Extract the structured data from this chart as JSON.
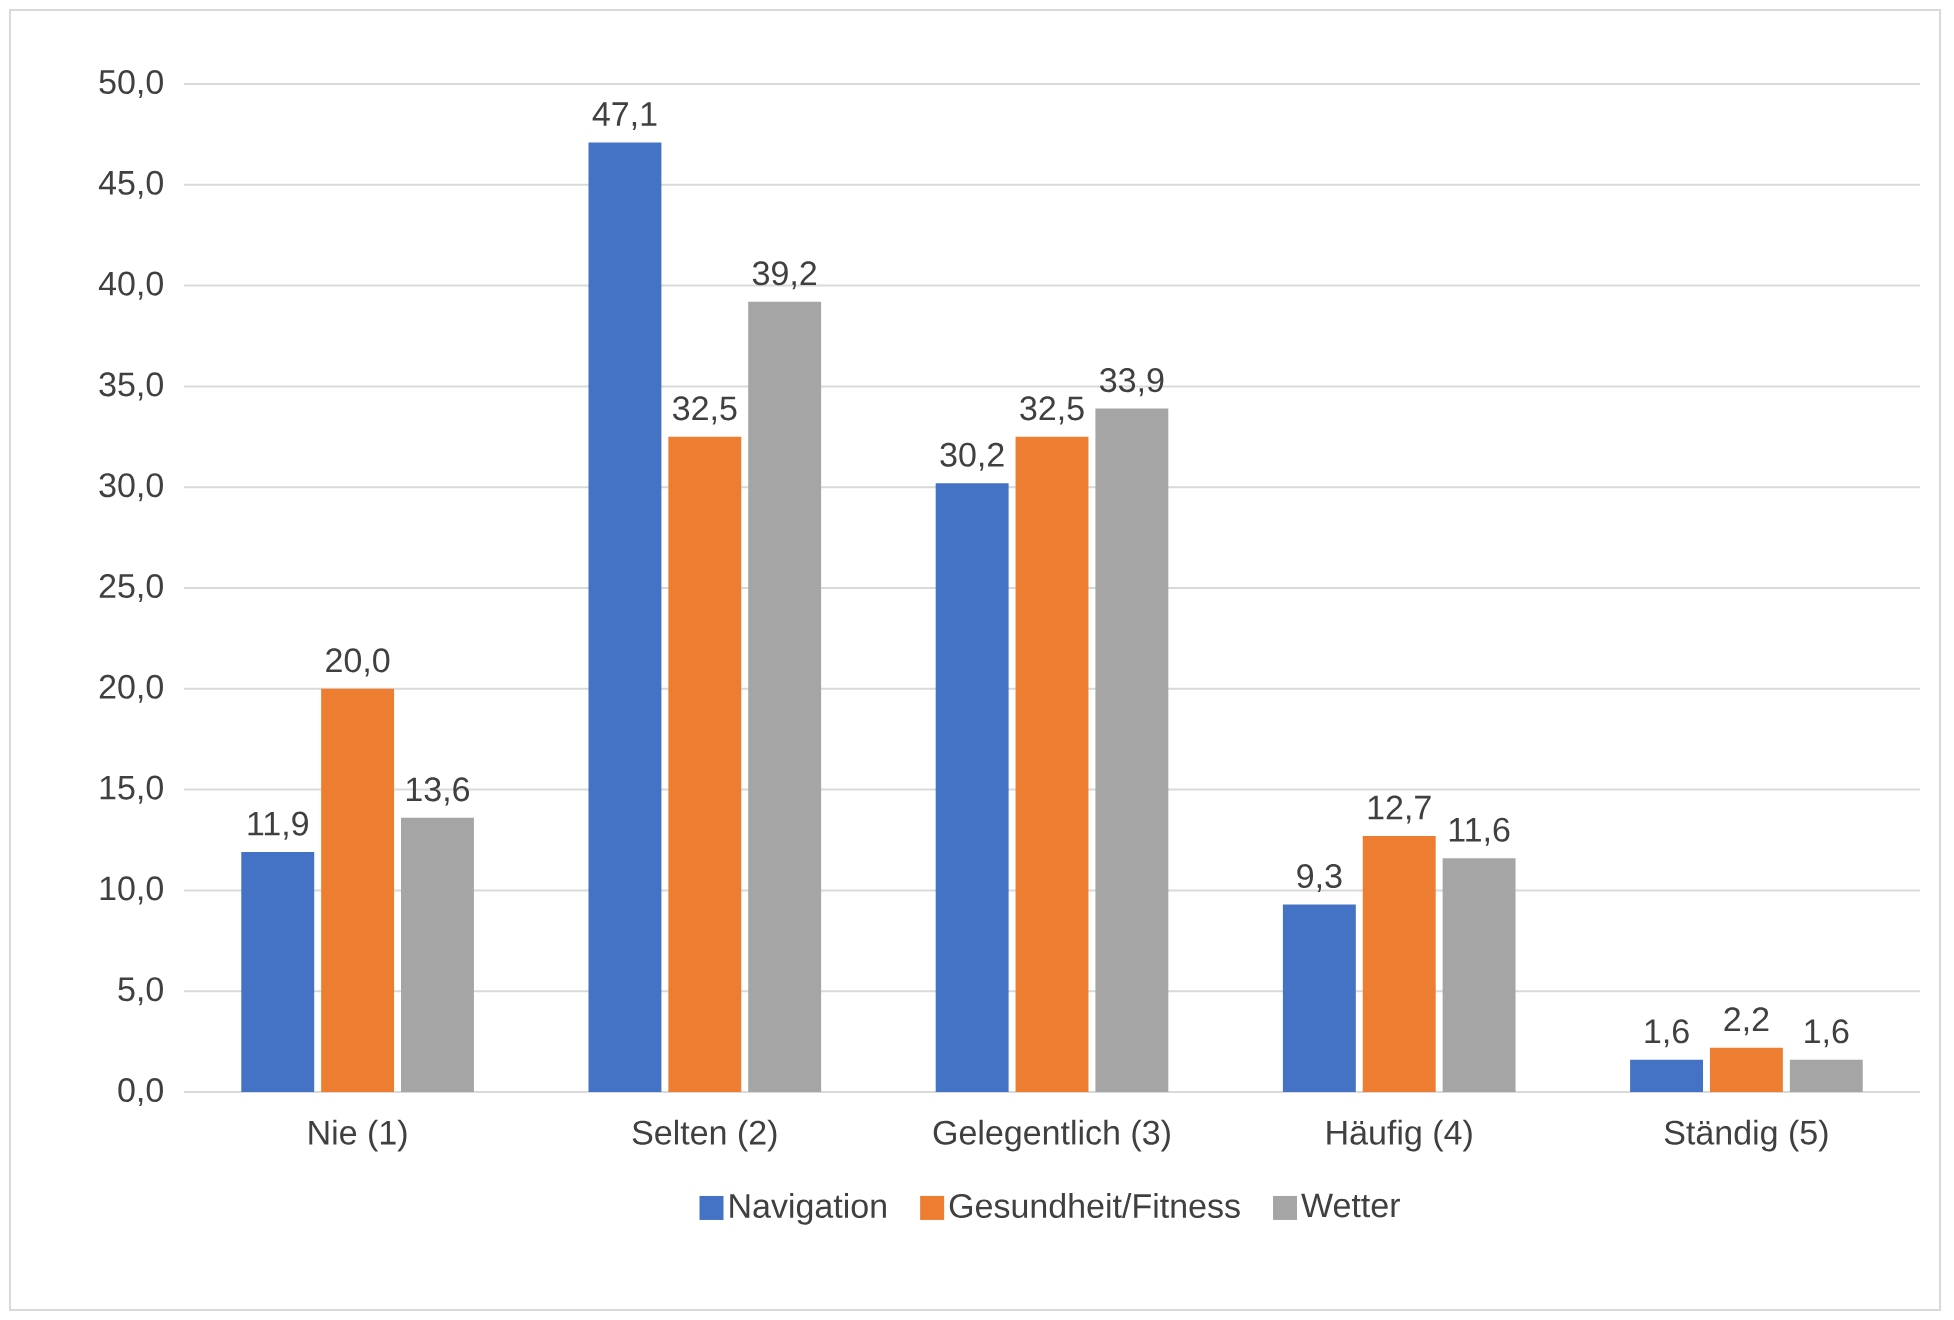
{
  "chart_data": {
    "type": "bar",
    "categories": [
      "Nie (1)",
      "Selten (2)",
      "Gelegentlich (3)",
      "Häufig (4)",
      "Ständig (5)"
    ],
    "series": [
      {
        "name": "Navigation",
        "color": "#4472c4",
        "values": [
          11.9,
          47.1,
          30.2,
          9.3,
          1.6
        ],
        "value_labels": [
          "11,9",
          "47,1",
          "30,2",
          "9,3",
          "1,6"
        ]
      },
      {
        "name": "Gesundheit/Fitness",
        "color": "#ed7d31",
        "values": [
          20.0,
          32.5,
          32.5,
          12.7,
          2.2
        ],
        "value_labels": [
          "20,0",
          "32,5",
          "32,5",
          "12,7",
          "2,2"
        ]
      },
      {
        "name": "Wetter",
        "color": "#a5a5a5",
        "values": [
          13.6,
          39.2,
          33.9,
          11.6,
          1.6
        ],
        "value_labels": [
          "13,6",
          "39,2",
          "33,9",
          "11,6",
          "1,6"
        ]
      }
    ],
    "ylim": [
      0,
      50
    ],
    "yticks": [
      {
        "value": 0,
        "label": "0,0"
      },
      {
        "value": 5,
        "label": "5,0"
      },
      {
        "value": 10,
        "label": "10,0"
      },
      {
        "value": 15,
        "label": "15,0"
      },
      {
        "value": 20,
        "label": "20,0"
      },
      {
        "value": 25,
        "label": "25,0"
      },
      {
        "value": 30,
        "label": "30,0"
      },
      {
        "value": 35,
        "label": "35,0"
      },
      {
        "value": 40,
        "label": "40,0"
      },
      {
        "value": 45,
        "label": "45,0"
      },
      {
        "value": 50,
        "label": "50,0"
      }
    ],
    "grid": "y",
    "legend": "bottom"
  }
}
